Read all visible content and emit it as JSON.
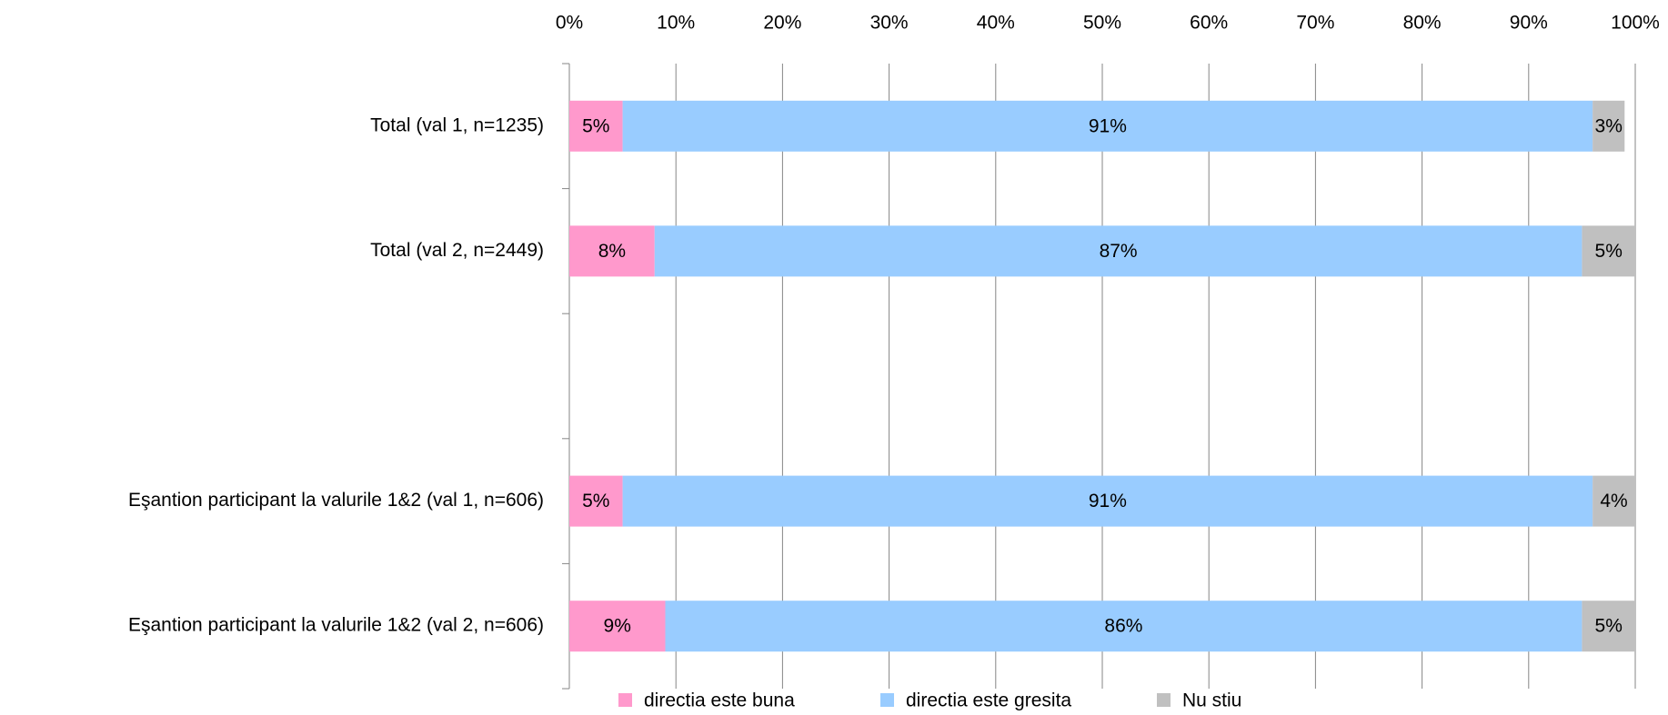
{
  "chart_data": {
    "type": "stacked-bar-horizontal",
    "categories": [
      "Total (val 1, n=1235)",
      "Total (val 2, n=2449)",
      null,
      "Eşantion participant la valurile 1&2 (val 1, n=606)",
      "Eşantion participant la valurile 1&2 (val 2, n=606)"
    ],
    "series": [
      {
        "name": "directia este buna",
        "color": "#ff99cc",
        "values": [
          5,
          8,
          null,
          5,
          9
        ],
        "value_labels": [
          "5%",
          "8%",
          null,
          "5%",
          "9%"
        ]
      },
      {
        "name": "directia este gresita",
        "color": "#99ccff",
        "values": [
          91,
          87,
          null,
          91,
          86
        ],
        "value_labels": [
          "91%",
          "87%",
          null,
          "91%",
          "86%"
        ]
      },
      {
        "name": "Nu stiu",
        "color": "#c0c0c0",
        "values": [
          3,
          5,
          null,
          4,
          5
        ],
        "value_labels": [
          "3%",
          "5%",
          null,
          "4%",
          "5%"
        ]
      }
    ],
    "xlim": [
      0,
      100
    ],
    "xticks": [
      {
        "value": 0,
        "label": "0%"
      },
      {
        "value": 10,
        "label": "10%"
      },
      {
        "value": 20,
        "label": "20%"
      },
      {
        "value": 30,
        "label": "30%"
      },
      {
        "value": 40,
        "label": "40%"
      },
      {
        "value": 50,
        "label": "50%"
      },
      {
        "value": 60,
        "label": "60%"
      },
      {
        "value": 70,
        "label": "70%"
      },
      {
        "value": 80,
        "label": "80%"
      },
      {
        "value": 90,
        "label": "90%"
      },
      {
        "value": 100,
        "label": "100%"
      }
    ],
    "grid": true,
    "legend": "bottom"
  }
}
